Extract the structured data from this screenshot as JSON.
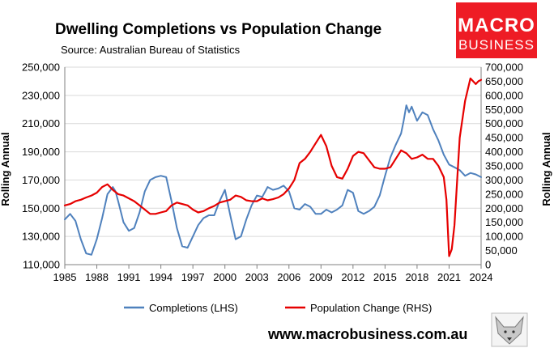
{
  "header": {
    "title": "Dwelling Completions vs Population Change",
    "source": "Source: Australian Bureau of Statistics"
  },
  "logo": {
    "line1": "MACRO",
    "line2": "BUSINESS",
    "bg_color": "#ee1c25"
  },
  "footer": {
    "url": "www.macrobusiness.com.au"
  },
  "chart_data": {
    "type": "line",
    "title": "Dwelling Completions vs Population Change",
    "subtitle": "Source: Australian Bureau of Statistics",
    "xlabel": "",
    "ylabel_left": "Rolling Annual",
    "ylabel_right": "Rolling Annual",
    "x_ticks": [
      "1985",
      "1988",
      "1991",
      "1994",
      "1997",
      "2000",
      "2003",
      "2006",
      "2009",
      "2012",
      "2015",
      "2018",
      "2021",
      "2024"
    ],
    "xlim": [
      1985.0,
      2024.0
    ],
    "y_left_lim": [
      110000,
      250000
    ],
    "y_left_ticks": [
      "110,000",
      "130,000",
      "150,000",
      "170,000",
      "190,000",
      "210,000",
      "230,000",
      "250,000"
    ],
    "y_right_lim": [
      0,
      700000
    ],
    "y_right_ticks": [
      "0",
      "50,000",
      "100,000",
      "150,000",
      "200,000",
      "250,000",
      "300,000",
      "350,000",
      "400,000",
      "450,000",
      "500,000",
      "550,000",
      "600,000",
      "650,000",
      "700,000"
    ],
    "grid": true,
    "legend_position": "bottom",
    "series": [
      {
        "name": "Completions (LHS)",
        "axis": "left",
        "color": "#4f81bd",
        "x": [
          1985.0,
          1985.5,
          1986.0,
          1986.5,
          1987.0,
          1987.5,
          1988.0,
          1988.5,
          1989.0,
          1989.5,
          1989.75,
          1990.0,
          1990.5,
          1991.0,
          1991.5,
          1992.0,
          1992.5,
          1993.0,
          1993.5,
          1994.0,
          1994.5,
          1995.0,
          1995.5,
          1996.0,
          1996.5,
          1997.0,
          1997.5,
          1998.0,
          1998.5,
          1999.0,
          1999.5,
          2000.0,
          2000.5,
          2001.0,
          2001.5,
          2002.0,
          2002.5,
          2003.0,
          2003.5,
          2004.0,
          2004.5,
          2005.0,
          2005.5,
          2006.0,
          2006.5,
          2007.0,
          2007.5,
          2008.0,
          2008.5,
          2009.0,
          2009.5,
          2010.0,
          2010.5,
          2011.0,
          2011.5,
          2012.0,
          2012.5,
          2013.0,
          2013.5,
          2014.0,
          2014.5,
          2015.0,
          2015.5,
          2016.0,
          2016.5,
          2016.75,
          2017.0,
          2017.25,
          2017.5,
          2018.0,
          2018.5,
          2019.0,
          2019.5,
          2020.0,
          2020.5,
          2021.0,
          2021.5,
          2022.0,
          2022.5,
          2023.0,
          2023.5,
          2024.0
        ],
        "values": [
          142000,
          146000,
          141000,
          128000,
          118000,
          117000,
          128000,
          143000,
          160000,
          165000,
          162000,
          155000,
          140000,
          134000,
          136000,
          147000,
          162000,
          170000,
          172000,
          173000,
          172000,
          155000,
          136000,
          123000,
          122000,
          130000,
          138000,
          143000,
          145000,
          145000,
          155000,
          163000,
          145000,
          128000,
          130000,
          142000,
          152000,
          159000,
          158000,
          165000,
          163000,
          164000,
          166000,
          162000,
          150000,
          149000,
          153000,
          151000,
          146000,
          146000,
          149000,
          147000,
          149000,
          152000,
          163000,
          161000,
          148000,
          146000,
          148000,
          151000,
          159000,
          173000,
          186000,
          195000,
          203000,
          212000,
          223000,
          218000,
          222000,
          212000,
          218000,
          216000,
          206000,
          198000,
          188000,
          181000,
          179000,
          177000,
          173000,
          175000,
          174000,
          172000
        ]
      },
      {
        "name": "Population Change (RHS)",
        "axis": "right",
        "color": "#e60000",
        "x": [
          1985.0,
          1985.5,
          1986.0,
          1986.5,
          1987.0,
          1987.5,
          1988.0,
          1988.5,
          1989.0,
          1989.5,
          1990.0,
          1990.5,
          1991.0,
          1991.5,
          1992.0,
          1992.5,
          1993.0,
          1993.5,
          1994.0,
          1994.5,
          1995.0,
          1995.5,
          1996.0,
          1996.5,
          1997.0,
          1997.5,
          1998.0,
          1998.5,
          1999.0,
          1999.5,
          2000.0,
          2000.5,
          2001.0,
          2001.5,
          2002.0,
          2002.5,
          2003.0,
          2003.5,
          2004.0,
          2004.5,
          2005.0,
          2005.5,
          2006.0,
          2006.5,
          2007.0,
          2007.5,
          2008.0,
          2008.5,
          2009.0,
          2009.5,
          2010.0,
          2010.5,
          2011.0,
          2011.5,
          2012.0,
          2012.5,
          2013.0,
          2013.5,
          2014.0,
          2014.5,
          2015.0,
          2015.5,
          2016.0,
          2016.5,
          2017.0,
          2017.5,
          2018.0,
          2018.5,
          2019.0,
          2019.5,
          2020.0,
          2020.5,
          2020.75,
          2021.0,
          2021.25,
          2021.5,
          2022.0,
          2022.5,
          2023.0,
          2023.5,
          2023.75,
          2024.0
        ],
        "values": [
          210000,
          215000,
          225000,
          230000,
          238000,
          245000,
          255000,
          275000,
          285000,
          265000,
          250000,
          245000,
          235000,
          225000,
          210000,
          195000,
          180000,
          180000,
          185000,
          190000,
          210000,
          220000,
          215000,
          210000,
          195000,
          185000,
          190000,
          200000,
          208000,
          220000,
          225000,
          230000,
          245000,
          240000,
          228000,
          225000,
          225000,
          235000,
          228000,
          232000,
          238000,
          250000,
          270000,
          300000,
          360000,
          375000,
          400000,
          430000,
          460000,
          420000,
          350000,
          310000,
          305000,
          340000,
          385000,
          400000,
          395000,
          370000,
          345000,
          340000,
          340000,
          345000,
          375000,
          405000,
          395000,
          375000,
          380000,
          390000,
          375000,
          375000,
          350000,
          310000,
          230000,
          30000,
          55000,
          140000,
          450000,
          580000,
          660000,
          640000,
          650000,
          655000
        ]
      }
    ]
  }
}
